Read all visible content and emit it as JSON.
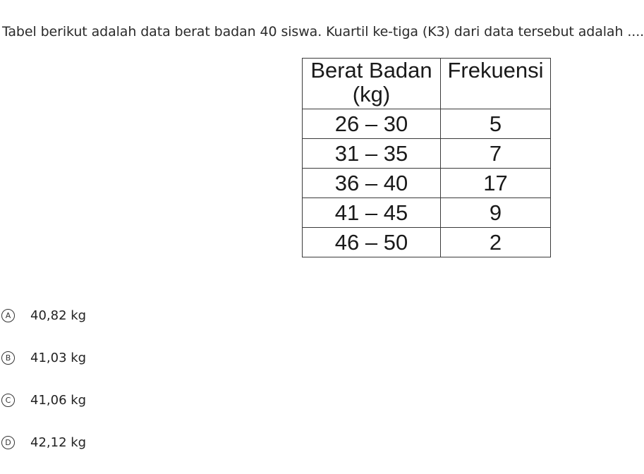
{
  "question": {
    "text": "Tabel berikut adalah data berat badan 40 siswa. Kuartil ke-tiga (K3) dari data tersebut adalah ...."
  },
  "table": {
    "headers": {
      "weight_line1": "Berat Badan",
      "weight_line2": "(kg)",
      "frequency": "Frekuensi"
    },
    "rows": [
      {
        "range": "26 – 30",
        "freq": "5"
      },
      {
        "range": "31 – 35",
        "freq": "7"
      },
      {
        "range": "36 – 40",
        "freq": "17"
      },
      {
        "range": "41 – 45",
        "freq": "9"
      },
      {
        "range": "46 – 50",
        "freq": "2"
      }
    ]
  },
  "options": [
    {
      "letter": "A",
      "text": "40,82 kg"
    },
    {
      "letter": "B",
      "text": "41,03 kg"
    },
    {
      "letter": "C",
      "text": "41,06 kg"
    },
    {
      "letter": "D",
      "text": "42,12 kg"
    }
  ]
}
